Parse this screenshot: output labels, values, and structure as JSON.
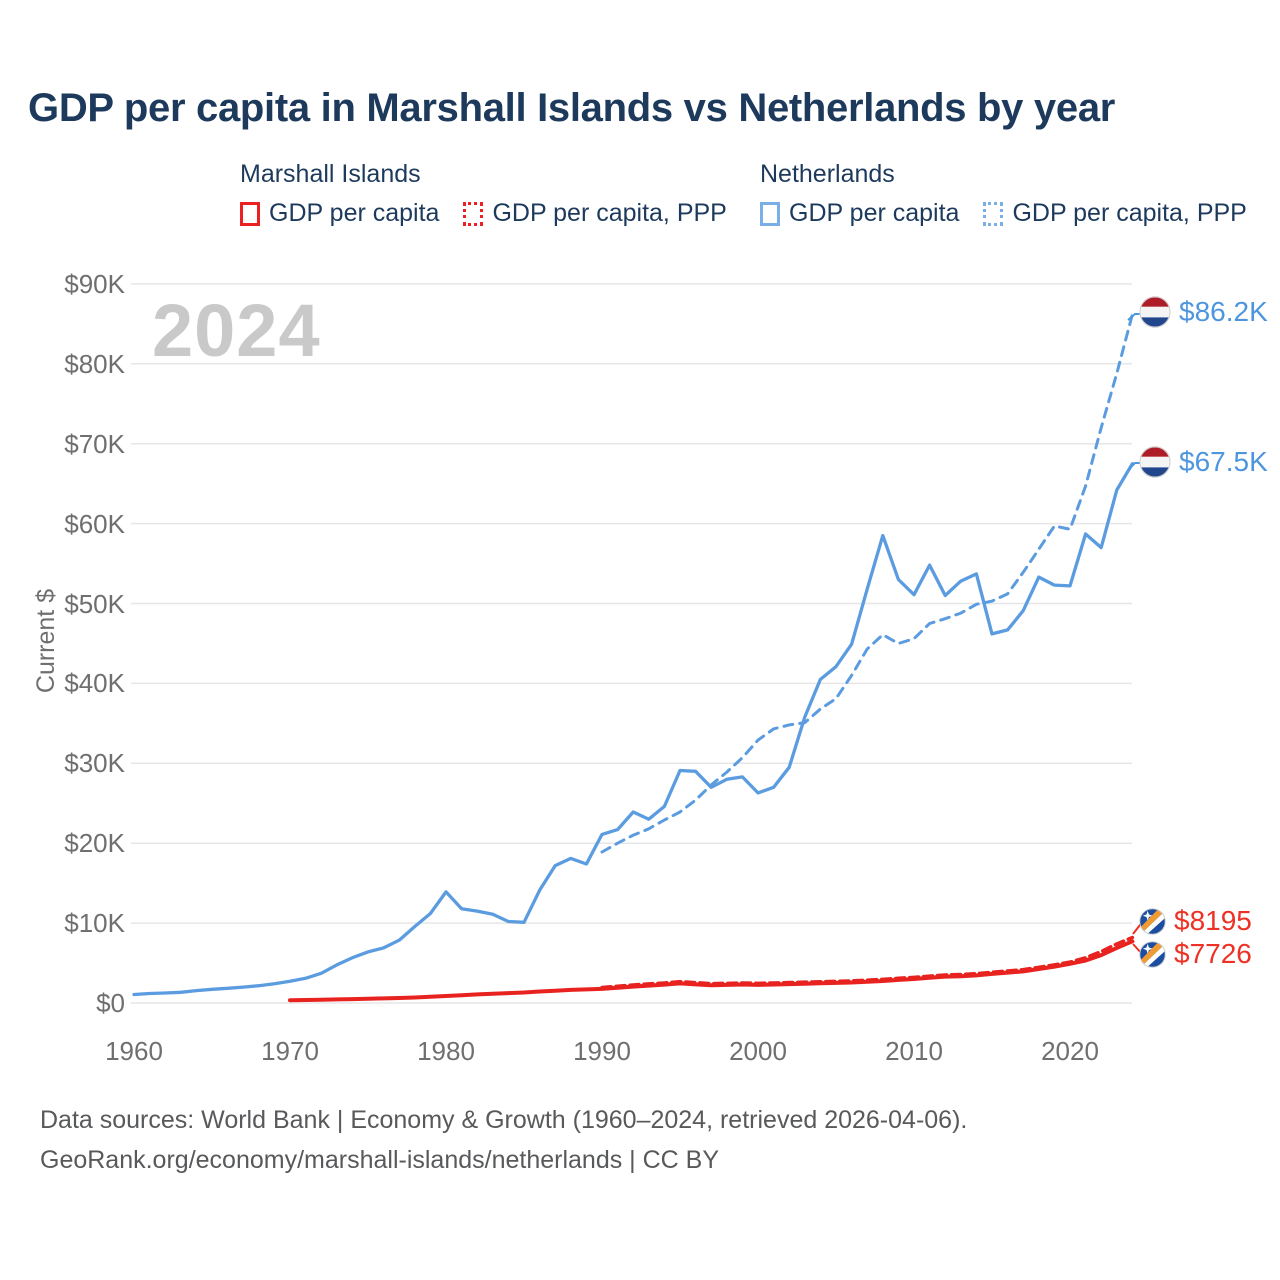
{
  "title": "GDP per capita in Marshall Islands vs Netherlands by year",
  "watermark": "2024",
  "legend": {
    "groups": [
      {
        "country": "Marshall Islands",
        "color": "#ec2020",
        "items": [
          {
            "label": "GDP per capita",
            "style": "solid"
          },
          {
            "label": "GDP per capita, PPP",
            "style": "dotted"
          }
        ]
      },
      {
        "country": "Netherlands",
        "color": "#79aee6",
        "items": [
          {
            "label": "GDP per capita",
            "style": "solid"
          },
          {
            "label": "GDP per capita, PPP",
            "style": "dotted"
          }
        ]
      }
    ]
  },
  "y_axis": {
    "label": "Current $",
    "ticks": [
      "$0",
      "$10K",
      "$20K",
      "$30K",
      "$40K",
      "$50K",
      "$60K",
      "$70K",
      "$80K",
      "$90K"
    ],
    "tick_values_thousands": [
      0,
      10,
      20,
      30,
      40,
      50,
      60,
      70,
      80,
      90
    ]
  },
  "x_axis": {
    "ticks": [
      "1960",
      "1970",
      "1980",
      "1990",
      "2000",
      "2010",
      "2020"
    ],
    "tick_values": [
      1960,
      1970,
      1980,
      1990,
      2000,
      2010,
      2020
    ]
  },
  "end_labels": [
    {
      "id": "nl_ppp",
      "flag": "nl",
      "flag_name": "netherlands-flag",
      "text": "$86.2K",
      "value": 86200
    },
    {
      "id": "nl_gdp",
      "flag": "nl",
      "flag_name": "netherlands-flag",
      "text": "$67.5K",
      "value": 67500
    },
    {
      "id": "mi_ppp",
      "flag": "mh",
      "flag_name": "marshall-islands-flag",
      "text": "$8195",
      "value": 8195
    },
    {
      "id": "mi_gdp",
      "flag": "mh",
      "flag_name": "marshall-islands-flag",
      "text": "$7726",
      "value": 7726
    }
  ],
  "footer": {
    "line1": "Data sources: World Bank | Economy & Growth (1960–2024, retrieved 2026-04-06).",
    "line2": "GeoRank.org/economy/marshall-islands/netherlands | CC BY"
  },
  "chart_data": {
    "type": "line",
    "title": "GDP per capita in Marshall Islands vs Netherlands by year",
    "xlabel": "",
    "ylabel": "Current $",
    "unit": "current US$, thousands",
    "xlim": [
      1960,
      2025
    ],
    "ylim_thousands": [
      0,
      90
    ],
    "grid": true,
    "legend_position": "top",
    "series": [
      {
        "id": "nl_gdp",
        "country": "Netherlands",
        "label": "GDP per capita",
        "color": "#5b9ce0",
        "line_style": "solid",
        "start_year": 1960,
        "end_year": 2024,
        "values_thousands": [
          1.07,
          1.19,
          1.25,
          1.34,
          1.55,
          1.71,
          1.84,
          1.99,
          2.16,
          2.41,
          2.72,
          3.09,
          3.72,
          4.77,
          5.67,
          6.4,
          6.9,
          7.86,
          9.57,
          11.2,
          13.9,
          11.8,
          11.5,
          11.1,
          10.2,
          10.1,
          14.1,
          17.2,
          18.1,
          17.4,
          21.1,
          21.7,
          23.9,
          23.0,
          24.6,
          29.1,
          29.0,
          27.0,
          28.0,
          28.3,
          26.3,
          27.0,
          29.5,
          35.8,
          40.5,
          42.1,
          44.9,
          51.8,
          58.5,
          53.0,
          51.1,
          54.8,
          51.0,
          52.8,
          53.7,
          46.2,
          46.7,
          49.1,
          53.3,
          52.3,
          52.2,
          58.7,
          57.0,
          64.2,
          67.5
        ]
      },
      {
        "id": "nl_ppp",
        "country": "Netherlands",
        "label": "GDP per capita, PPP",
        "color": "#5b9ce0",
        "line_style": "dashed",
        "start_year": 1990,
        "end_year": 2024,
        "values_thousands": [
          18.9,
          20.0,
          21.0,
          21.8,
          22.9,
          23.9,
          25.4,
          27.3,
          28.9,
          30.7,
          32.9,
          34.3,
          34.8,
          35.1,
          36.8,
          38.1,
          41.0,
          44.3,
          46.1,
          45.0,
          45.6,
          47.5,
          48.1,
          48.8,
          49.9,
          50.3,
          51.2,
          53.9,
          56.8,
          59.7,
          59.3,
          64.7,
          72.0,
          78.8,
          86.2
        ]
      },
      {
        "id": "mi_gdp",
        "country": "Marshall Islands",
        "label": "GDP per capita",
        "color": "#e8221f",
        "line_style": "solid",
        "start_year": 1970,
        "end_year": 2024,
        "values_thousands": [
          0.35,
          0.38,
          0.41,
          0.45,
          0.49,
          0.54,
          0.58,
          0.63,
          0.69,
          0.78,
          0.88,
          0.98,
          1.08,
          1.15,
          1.24,
          1.32,
          1.44,
          1.54,
          1.64,
          1.7,
          1.76,
          1.9,
          2.05,
          2.18,
          2.3,
          2.45,
          2.33,
          2.22,
          2.26,
          2.31,
          2.26,
          2.31,
          2.36,
          2.41,
          2.46,
          2.51,
          2.56,
          2.65,
          2.75,
          2.89,
          3.0,
          3.15,
          3.3,
          3.36,
          3.46,
          3.64,
          3.8,
          3.96,
          4.25,
          4.56,
          4.9,
          5.32,
          6.0,
          6.9,
          7.726
        ]
      },
      {
        "id": "mi_ppp",
        "country": "Marshall Islands",
        "label": "GDP per capita, PPP",
        "color": "#e8221f",
        "line_style": "dashed",
        "start_year": 1990,
        "end_year": 2024,
        "values_thousands": [
          1.95,
          2.1,
          2.26,
          2.4,
          2.52,
          2.68,
          2.55,
          2.43,
          2.47,
          2.52,
          2.47,
          2.52,
          2.57,
          2.62,
          2.67,
          2.72,
          2.78,
          2.87,
          2.97,
          3.11,
          3.22,
          3.37,
          3.52,
          3.58,
          3.68,
          3.86,
          4.02,
          4.18,
          4.47,
          4.78,
          5.12,
          5.67,
          6.45,
          7.4,
          8.195
        ]
      }
    ]
  }
}
